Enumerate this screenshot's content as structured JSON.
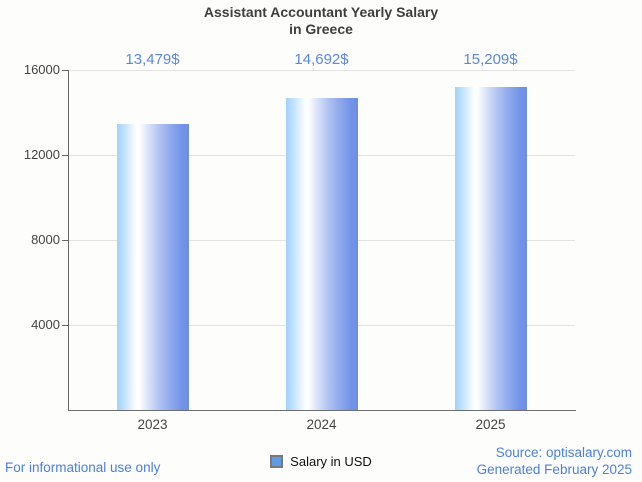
{
  "title": {
    "line1": "Assistant Accountant Yearly Salary",
    "line2": "in Greece"
  },
  "chart_data": {
    "type": "bar",
    "title": "Assistant Accountant Yearly Salary in Greece",
    "categories": [
      "2023",
      "2024",
      "2025"
    ],
    "series": [
      {
        "name": "Salary in USD",
        "values": [
          13479,
          14692,
          15209
        ]
      }
    ],
    "value_labels": [
      "13,479$",
      "14,692$",
      "15,209$"
    ],
    "xlabel": "",
    "ylabel": "",
    "ylim": [
      0,
      16000
    ],
    "yticks": [
      4000,
      8000,
      12000,
      16000
    ],
    "grid": true,
    "legend_position": "bottom",
    "bar_color_gradient": [
      "#a2d2fc",
      "#ffffff",
      "#6d8ee6"
    ]
  },
  "legend": {
    "label": "Salary in USD",
    "marker_color": "#5f9ce6"
  },
  "footer": {
    "disclaimer": "For informational use only",
    "source": "Source: optisalary.com",
    "generated": "Generated February 2025"
  },
  "colors": {
    "background": "#fdfdfb",
    "title_text": "#3e3e3e",
    "axis": "#666666",
    "gridline": "#e3e3e3",
    "tick_label": "#444444",
    "value_label": "#5b86e2",
    "footer_text": "#4c7ee0"
  }
}
